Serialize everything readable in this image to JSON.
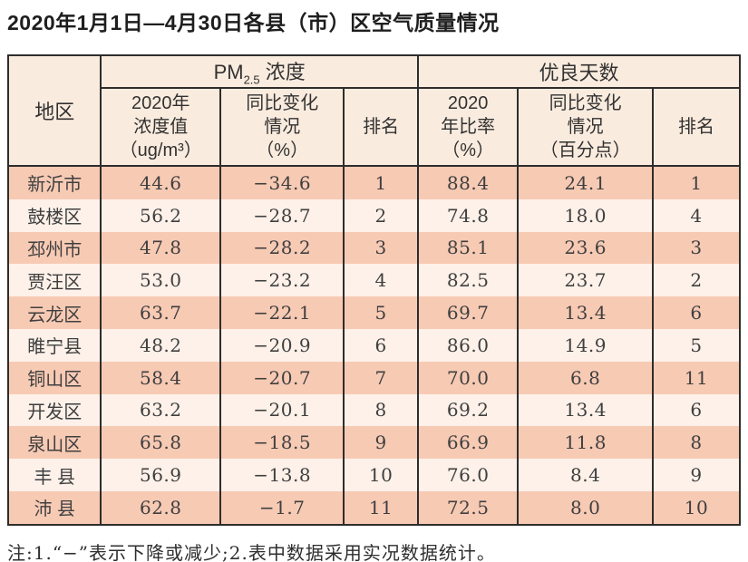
{
  "title": "2020年1月1日—4月30日各县（市）区空气质量情况",
  "table": {
    "region_header": "地区",
    "pm_group": {
      "prefix": "PM",
      "subscript": "2.5",
      "suffix": " 浓度"
    },
    "days_group": "优良天数",
    "columns": {
      "pm_value": "2020年\n浓度值\n（ug/m³）",
      "pm_change": "同比变化\n情况\n（%）",
      "pm_rank": "排名",
      "days_rate": "2020\n年比率\n（%）",
      "days_change": "同比变化\n情况\n（百分点）",
      "days_rank": "排名"
    },
    "rows": [
      [
        "新沂市",
        "44.6",
        "−34.6",
        "1",
        "88.4",
        "24.1",
        "1"
      ],
      [
        "鼓楼区",
        "56.2",
        "−28.7",
        "2",
        "74.8",
        "18.0",
        "4"
      ],
      [
        "邳州市",
        "47.8",
        "−28.2",
        "3",
        "85.1",
        "23.6",
        "3"
      ],
      [
        "贾汪区",
        "53.0",
        "−23.2",
        "4",
        "82.5",
        "23.7",
        "2"
      ],
      [
        "云龙区",
        "63.7",
        "−22.1",
        "5",
        "69.7",
        "13.4",
        "6"
      ],
      [
        "睢宁县",
        "48.2",
        "−20.9",
        "6",
        "86.0",
        "14.9",
        "5"
      ],
      [
        "铜山区",
        "58.4",
        "−20.7",
        "7",
        "70.0",
        "6.8",
        "11"
      ],
      [
        "开发区",
        "63.2",
        "−20.1",
        "8",
        "69.2",
        "13.4",
        "6"
      ],
      [
        "泉山区",
        "65.8",
        "−18.5",
        "9",
        "66.9",
        "11.8",
        "8"
      ],
      [
        "丰 县",
        "56.9",
        "−13.8",
        "10",
        "76.0",
        "8.4",
        "9"
      ],
      [
        "沛 县",
        "62.8",
        "−1.7",
        "11",
        "72.5",
        "8.0",
        "10"
      ]
    ]
  },
  "note": "注:1.“−”表示下降或减少;2.表中数据采用实况数据统计。",
  "colors": {
    "row_salmon": "#f7cab4",
    "row_cream": "#fdf1e9",
    "header_bg": "#f9ecdf",
    "border": "#2f2d2b",
    "text": "#3f3f3f"
  }
}
